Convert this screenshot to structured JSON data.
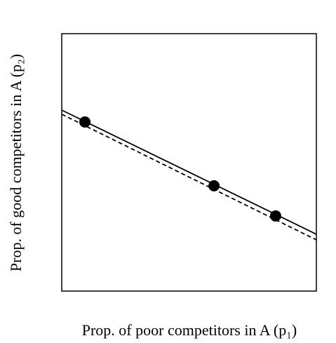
{
  "chart_data": {
    "type": "scatter",
    "xlabel": "Prop. of poor competitors in A (p₁)",
    "ylabel": "Prop. of good competitors in A (p₂)",
    "xlim": [
      0,
      1
    ],
    "ylim": [
      0,
      1
    ],
    "series": [
      {
        "color": "#000000",
        "x": [
          0.091,
          0.598,
          0.84
        ],
        "values": [
          0.657,
          0.409,
          0.292
        ]
      }
    ],
    "lines": [
      {
        "style": "solid",
        "color": "#000000",
        "x": [
          0,
          1
        ],
        "values": [
          0.703,
          0.221
        ]
      },
      {
        "style": "dashed",
        "color": "#000000",
        "x": [
          0,
          1
        ],
        "values": [
          0.687,
          0.199
        ]
      }
    ]
  }
}
